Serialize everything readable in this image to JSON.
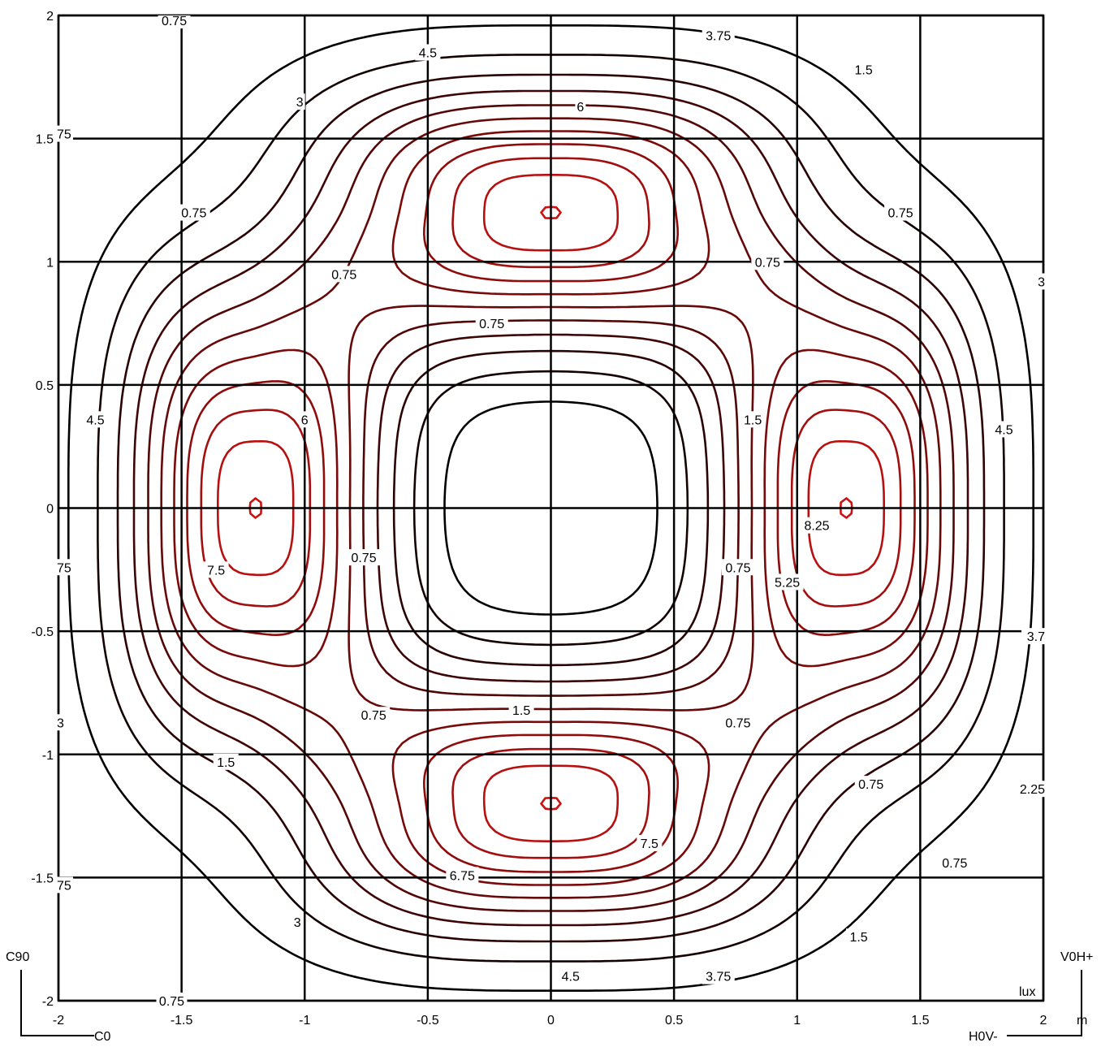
{
  "chart_data": {
    "type": "contour",
    "title": "",
    "unit_label": "lux",
    "xlabel": "m",
    "ylabel": "",
    "xlim": [
      -2,
      2
    ],
    "ylim": [
      -2,
      2
    ],
    "grid": true,
    "x_ticks": [
      "-2",
      "-1.5",
      "-1",
      "-0.5",
      "0",
      "0.5",
      "1",
      "1.5",
      "2"
    ],
    "y_ticks": [
      "2",
      "1.5",
      "1",
      "0.5",
      "0",
      "-0.5",
      "-1",
      "-1.5",
      "-2"
    ],
    "contour_levels": [
      0.75,
      1.5,
      2.25,
      3,
      3.75,
      4.5,
      5.25,
      6,
      6.75,
      7.5,
      8.25
    ],
    "peaks": [
      {
        "x": 0,
        "y": 1.2,
        "value": 8.25
      },
      {
        "x": 0,
        "y": -1.2,
        "value": 8.25
      },
      {
        "x": -1.2,
        "y": 0,
        "value": 8.25
      },
      {
        "x": 1.2,
        "y": 0,
        "value": 8.25
      }
    ],
    "color_low": "#000000",
    "color_high": "#cc1111",
    "contour_labels": [
      {
        "text": "0.75",
        "x": -1.53,
        "y": 1.98
      },
      {
        "text": "4.5",
        "x": -0.5,
        "y": 1.85
      },
      {
        "text": "3.75",
        "x": 0.68,
        "y": 1.92
      },
      {
        "text": "1.5",
        "x": 1.27,
        "y": 1.78
      },
      {
        "text": "6",
        "x": 0.12,
        "y": 1.63
      },
      {
        "text": "3",
        "x": -1.02,
        "y": 1.65
      },
      {
        "text": "0.75",
        "x": -1.45,
        "y": 1.2
      },
      {
        "text": "0.75",
        "x": 1.42,
        "y": 1.2
      },
      {
        "text": "0.75",
        "x": 0.88,
        "y": 1.0
      },
      {
        "text": "0.75",
        "x": -0.84,
        "y": 0.95
      },
      {
        "text": "0.75",
        "x": -0.24,
        "y": 0.75
      },
      {
        "text": "4.5",
        "x": -1.85,
        "y": 0.36
      },
      {
        "text": "6",
        "x": -1.0,
        "y": 0.36
      },
      {
        "text": "1.5",
        "x": 0.82,
        "y": 0.36
      },
      {
        "text": "4.5",
        "x": 1.84,
        "y": 0.32
      },
      {
        "text": "8.25",
        "x": 1.08,
        "y": -0.07
      },
      {
        "text": "7.5",
        "x": -1.36,
        "y": -0.25
      },
      {
        "text": "0.75",
        "x": -0.76,
        "y": -0.2
      },
      {
        "text": "0.75",
        "x": 0.76,
        "y": -0.24
      },
      {
        "text": "5.25",
        "x": 0.96,
        "y": -0.3
      },
      {
        "text": "0.75",
        "x": -0.72,
        "y": -0.84
      },
      {
        "text": "1.5",
        "x": -0.12,
        "y": -0.82
      },
      {
        "text": "0.75",
        "x": 0.76,
        "y": -0.87
      },
      {
        "text": "1.5",
        "x": -1.32,
        "y": -1.03
      },
      {
        "text": "0.75",
        "x": 1.3,
        "y": -1.12
      },
      {
        "text": "7.5",
        "x": 0.4,
        "y": -1.36
      },
      {
        "text": "6.75",
        "x": -0.36,
        "y": -1.49
      },
      {
        "text": "0.75",
        "x": 1.64,
        "y": -1.44
      },
      {
        "text": "3",
        "x": -1.03,
        "y": -1.68
      },
      {
        "text": "1.5",
        "x": 1.25,
        "y": -1.74
      },
      {
        "text": "4.5",
        "x": 0.08,
        "y": -1.9
      },
      {
        "text": "3.75",
        "x": 0.68,
        "y": -1.9
      }
    ],
    "edge_labels": [
      {
        "text": "75",
        "x": -2,
        "y": 1.52
      },
      {
        "text": "3",
        "x": 2,
        "y": 0.92
      },
      {
        "text": "75",
        "x": -2,
        "y": -0.24
      },
      {
        "text": "3.7",
        "x": 2,
        "y": -0.52
      },
      {
        "text": "3",
        "x": -2,
        "y": -0.87
      },
      {
        "text": "2.25",
        "x": 2,
        "y": -1.14
      },
      {
        "text": "75",
        "x": -2,
        "y": -1.53
      },
      {
        "text": "0.75",
        "x": -1.54,
        "y": -2.0
      }
    ]
  },
  "orientation": {
    "top_left": "C90",
    "bottom_left": "C0",
    "top_right": "V0H+",
    "bottom_right": "H0V-"
  }
}
